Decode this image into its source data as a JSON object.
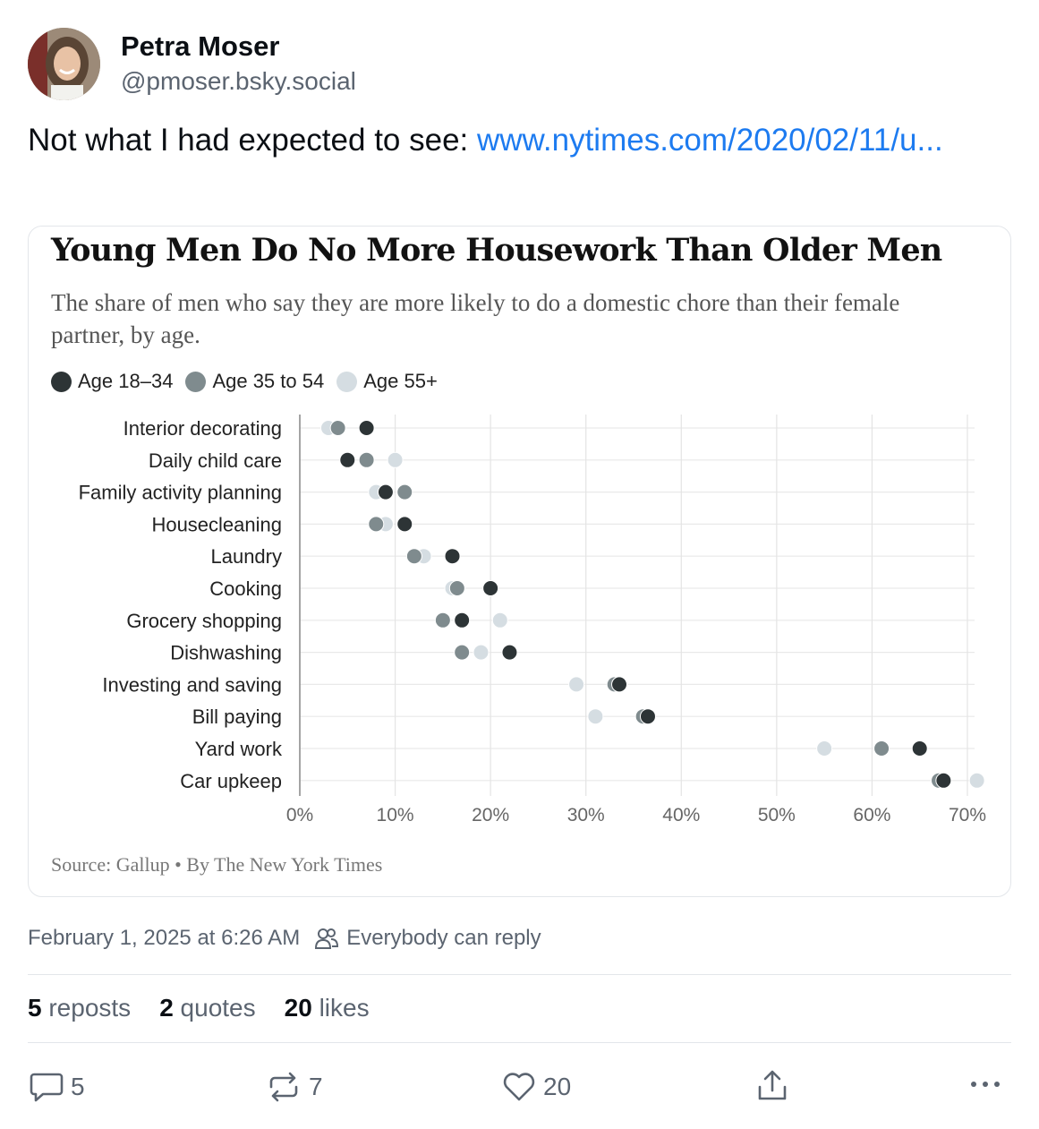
{
  "post": {
    "author_name": "Petra Moser",
    "author_handle": "@pmoser.bsky.social",
    "text": "Not what I had expected to see: ",
    "link_text": "www.nytimes.com/2020/02/11/u...",
    "timestamp": "February 1, 2025 at 6:26 AM",
    "reply_setting": "Everybody can reply",
    "stats": {
      "reposts_count": "5",
      "reposts_label": "reposts",
      "quotes_count": "2",
      "quotes_label": "quotes",
      "likes_count": "20",
      "likes_label": "likes"
    },
    "actions": {
      "reply_count": "5",
      "repost_count": "7",
      "like_count": "20"
    }
  },
  "icons": {
    "reply": "speech-bubble-icon",
    "repost": "repost-arrows-icon",
    "like": "heart-icon",
    "share": "share-icon",
    "more": "more-dots-icon",
    "reply_setting": "people-icon"
  },
  "chart_data": {
    "type": "scatter",
    "title": "Young Men Do No More Housework Than Older Men",
    "subtitle": "The share of men who say they are more likely to do a domestic chore than their female partner, by age.",
    "source": "Source: Gallup • By The New York Times",
    "categories": [
      "Interior decorating",
      "Daily child care",
      "Family activity planning",
      "Housecleaning",
      "Laundry",
      "Cooking",
      "Grocery shopping",
      "Dishwashing",
      "Investing and saving",
      "Bill paying",
      "Yard work",
      "Car upkeep"
    ],
    "series": [
      {
        "name": "Age 55+",
        "color": "#d5dde2",
        "values": [
          3,
          10,
          8,
          9,
          13,
          16,
          21,
          19,
          29,
          31,
          55,
          71
        ]
      },
      {
        "name": "Age 35 to 54",
        "color": "#7f8b8e",
        "values": [
          4,
          7,
          11,
          8,
          12,
          16.5,
          15,
          17,
          33,
          36,
          61,
          67
        ]
      },
      {
        "name": "Age 18–34",
        "color": "#2d3436",
        "values": [
          7,
          5,
          9,
          11,
          16,
          20,
          17,
          22,
          33.5,
          36.5,
          65,
          67.5
        ]
      }
    ],
    "xlim": [
      0,
      70
    ],
    "xticks": [
      0,
      10,
      20,
      30,
      40,
      50,
      60,
      70
    ],
    "xtick_labels": [
      "0%",
      "10%",
      "20%",
      "30%",
      "40%",
      "50%",
      "60%",
      "70%"
    ],
    "grid": true,
    "legend_position": "top-left"
  }
}
